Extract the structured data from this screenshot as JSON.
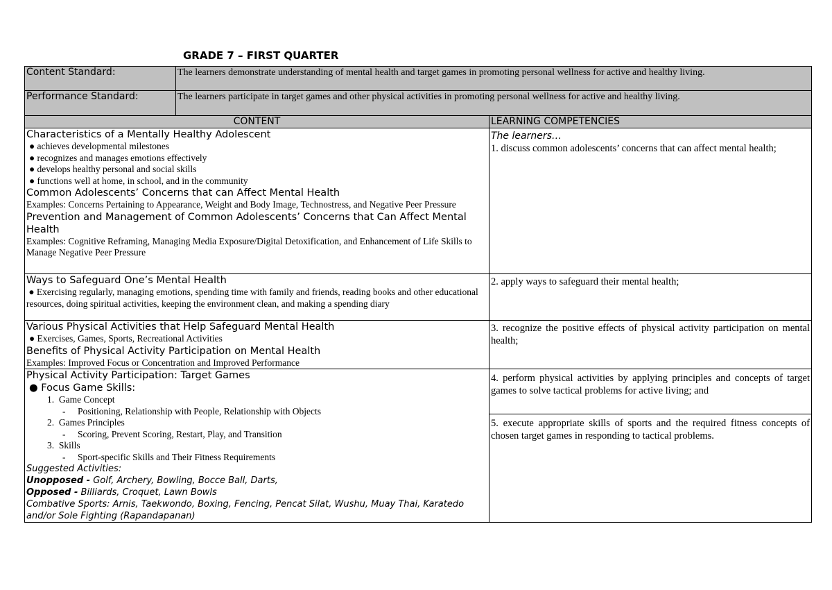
{
  "title": "GRADE 7 – FIRST QUARTER",
  "standards": [
    {
      "label": "Content Standard:",
      "text": "The learners demonstrate understanding of mental health and target games in promoting personal wellness for active and healthy living."
    },
    {
      "label": "Performance Standard:",
      "text": "The learners participate in target games and other physical activities in promoting personal wellness for active and healthy living."
    }
  ],
  "headers": {
    "content": "CONTENT",
    "competencies": "LEARNING COMPETENCIES"
  },
  "row1": {
    "h1": "Characteristics of a Mentally Healthy Adolescent",
    "bullets": [
      "achieves developmental milestones",
      "recognizes and manages emotions effectively",
      "develops healthy personal and social skills",
      "functions well at home, in school, and in the community"
    ],
    "h2": "Common Adolescents’ Concerns that can Affect Mental Health",
    "ex2": "Examples: Concerns Pertaining to Appearance, Weight and Body Image, Technostress, and Negative Peer Pressure",
    "h3": "Prevention and Management of Common Adolescents’ Concerns that Can Affect Mental Health",
    "ex3": "Examples: Cognitive Reframing, Managing Media Exposure/Digital Detoxification, and Enhancement of Life Skills to Manage Negative Peer Pressure",
    "learners": "The learners…",
    "comp": "1. discuss common adolescents’ concerns that can affect mental health;"
  },
  "row2": {
    "h1": "Ways to Safeguard One’s Mental Health",
    "bullet": "Exercising regularly, managing emotions, spending time with family and friends, reading books and other educational resources, doing spiritual activities, keeping the environment clean, and making a spending diary",
    "comp": "2. apply ways to safeguard their mental health;"
  },
  "row3": {
    "h1": "Various Physical Activities that Help Safeguard Mental Health",
    "bullet": "Exercises, Games, Sports, Recreational Activities",
    "h2": "Benefits of Physical Activity Participation on Mental Health",
    "ex2": "Examples: Improved Focus or Concentration and Improved Performance",
    "comp": "3. recognize the positive effects of physical activity participation on mental health;"
  },
  "row4": {
    "h1": "Physical Activity Participation: Target Games",
    "bullet": "Focus Game Skills:",
    "items": [
      {
        "n": "1.",
        "t": "Game Concept",
        "d": "Positioning, Relationship with People, Relationship with Objects"
      },
      {
        "n": "2.",
        "t": "Games Principles",
        "d": "Scoring, Prevent Scoring, Restart, Play, and Transition"
      },
      {
        "n": "3.",
        "t": "Skills",
        "d": "Sport-specific Skills and Their Fitness Requirements"
      }
    ],
    "suggested": "Suggested Activities:",
    "unopposed_label": "Unopposed -",
    "unopposed": " Golf, Archery, Bowling, Bocce Ball, Darts,",
    "opposed_label": "Opposed -",
    "opposed": " Billiards, Croquet, Lawn Bowls",
    "combative": "Combative Sports: Arnis, Taekwondo, Boxing, Fencing, Pencat Silat, Wushu, Muay Thai, Karatedo and/or Sole Fighting (Rapandapanan)",
    "comp4": "4. perform physical activities by applying principles and concepts of target games to solve tactical problems for active living; and",
    "comp5": "5. execute appropriate skills of sports and the required fitness concepts of chosen target games in responding to tactical problems."
  }
}
